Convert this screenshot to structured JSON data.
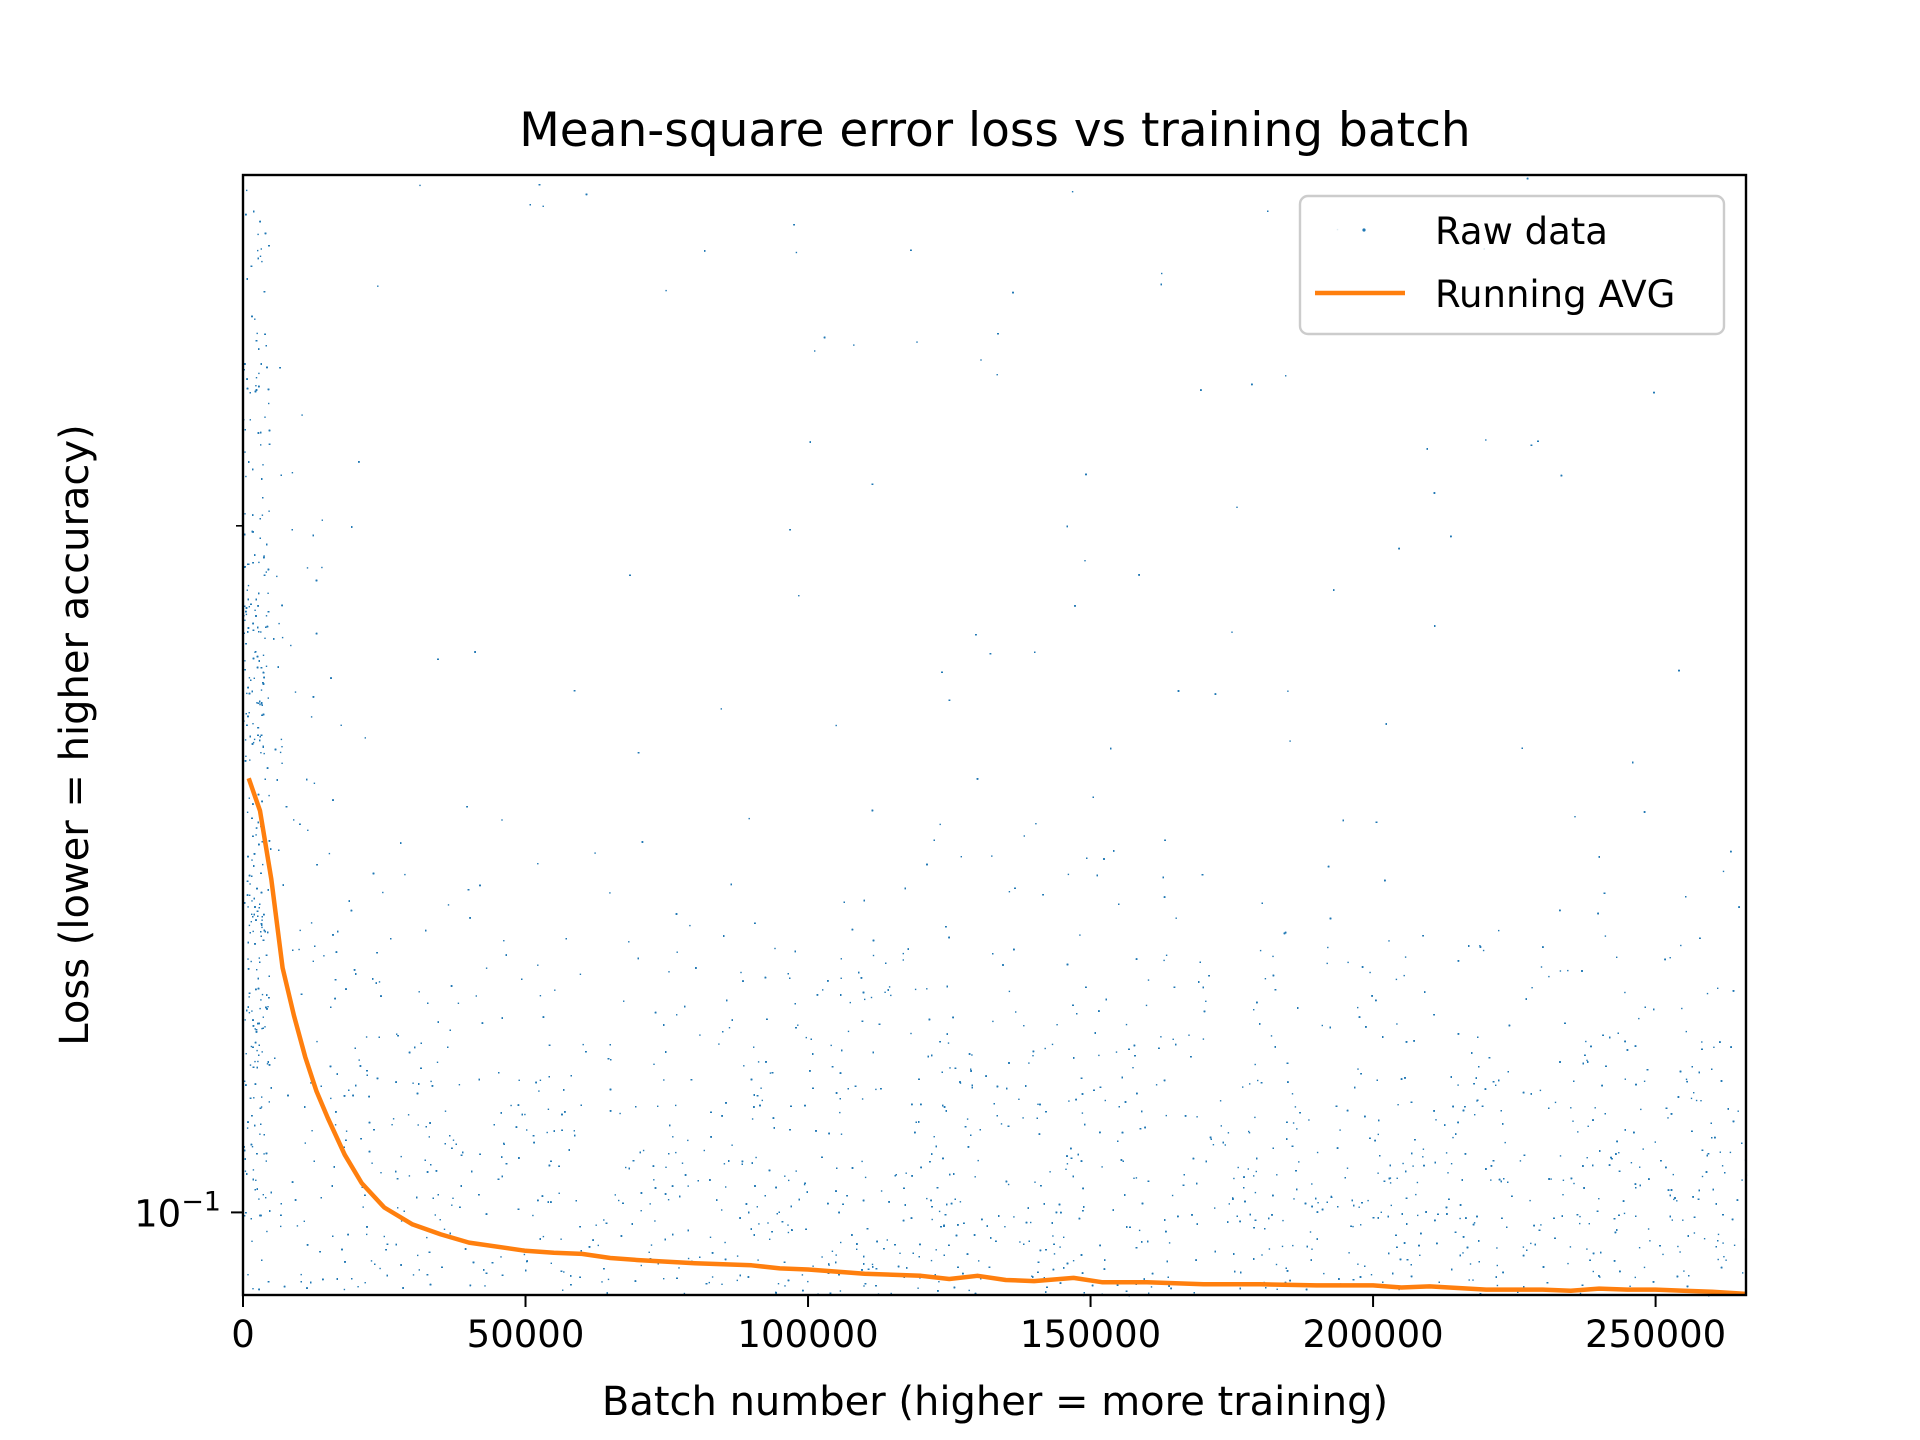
{
  "chart_data": {
    "type": "scatter",
    "title": "Mean-square error loss vs training batch",
    "xlabel": "Batch number (higher = more training)",
    "ylabel": "Loss (lower = higher accuracy)",
    "xlim": [
      0,
      266000
    ],
    "ylim": [
      0.092,
      0.285
    ],
    "yscale": "log",
    "x_ticks": [
      0,
      50000,
      100000,
      150000,
      200000,
      250000
    ],
    "x_tick_labels": [
      "0",
      "50000",
      "100000",
      "150000",
      "200000",
      "250000"
    ],
    "y_major_ticks": [
      0.1
    ],
    "y_major_tick_base": "10",
    "y_major_tick_exponent": "−1",
    "y_minor_ticks": [
      0.2,
      0.3
    ],
    "grid": false,
    "legend": {
      "position": "top-right",
      "entries": [
        "Raw data",
        "Running AVG"
      ]
    },
    "series": [
      {
        "name": "Raw data",
        "kind": "scatter",
        "color": "#1f77b4",
        "description_of_density": [
          {
            "x": 0,
            "y_min": 0.092,
            "y_typical_max": 0.215
          },
          {
            "x": 10000,
            "y_min": 0.092,
            "y_typical_max": 0.17
          },
          {
            "x": 30000,
            "y_min": 0.092,
            "y_typical_max": 0.16
          },
          {
            "x": 100000,
            "y_min": 0.092,
            "y_typical_max": 0.16
          },
          {
            "x": 266000,
            "y_min": 0.092,
            "y_typical_max": 0.15
          }
        ]
      },
      {
        "name": "Running AVG",
        "kind": "line",
        "color": "#ff7f0e",
        "x": [
          1000,
          3000,
          5000,
          7000,
          9000,
          11000,
          13000,
          15000,
          18000,
          21000,
          25000,
          30000,
          35000,
          40000,
          50000,
          55000,
          60000,
          65000,
          70000,
          80000,
          90000,
          95000,
          100000,
          110000,
          120000,
          125000,
          130000,
          135000,
          140000,
          147000,
          152000,
          160000,
          170000,
          180000,
          190000,
          200000,
          205000,
          210000,
          220000,
          225000,
          230000,
          235000,
          240000,
          245000,
          250000,
          255000,
          260000,
          266000
        ],
        "y": [
          0.155,
          0.15,
          0.14,
          0.128,
          0.122,
          0.117,
          0.113,
          0.11,
          0.106,
          0.103,
          0.1005,
          0.0988,
          0.0978,
          0.097,
          0.0962,
          0.096,
          0.0959,
          0.0955,
          0.0953,
          0.095,
          0.0948,
          0.0945,
          0.0944,
          0.094,
          0.0938,
          0.0935,
          0.0938,
          0.0934,
          0.0933,
          0.0936,
          0.0932,
          0.0932,
          0.093,
          0.093,
          0.0929,
          0.0929,
          0.0927,
          0.0928,
          0.0925,
          0.0925,
          0.0925,
          0.0924,
          0.0926,
          0.0925,
          0.0925,
          0.0924,
          0.0923,
          0.0921
        ]
      }
    ]
  }
}
